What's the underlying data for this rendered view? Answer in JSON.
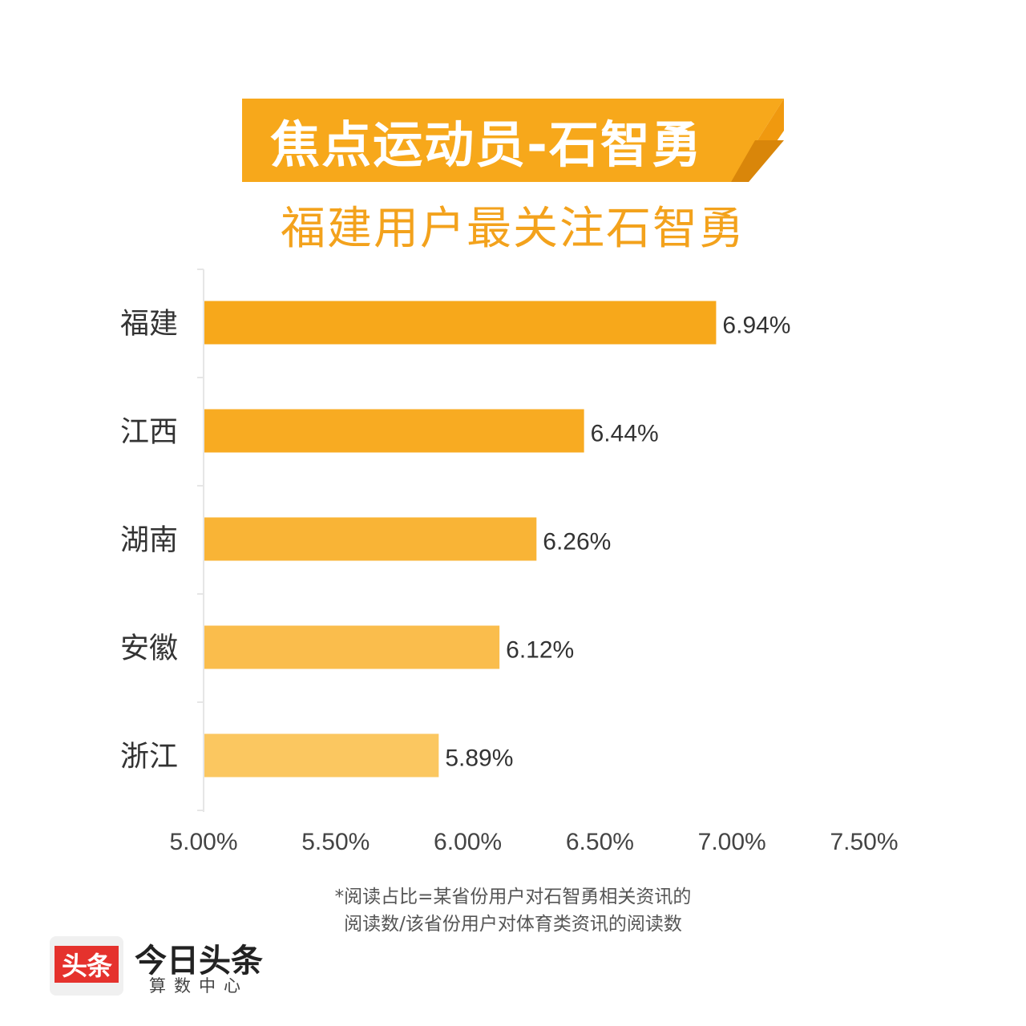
{
  "banner": {
    "title": "焦点运动员-石智勇",
    "color": "#f7a81b",
    "fold_color": "#e08f0c"
  },
  "subtitle": "福建用户最关注石智勇",
  "chart_data": {
    "type": "bar",
    "orientation": "horizontal",
    "title": "福建用户最关注石智勇",
    "categories": [
      "福建",
      "江西",
      "湖南",
      "安徽",
      "浙江"
    ],
    "values": [
      6.94,
      6.44,
      6.26,
      6.12,
      5.89
    ],
    "value_labels": [
      "6.94%",
      "6.44%",
      "6.26%",
      "6.12%",
      "5.89%"
    ],
    "bar_colors": [
      "#f7a81b",
      "#f8ab22",
      "#f9b436",
      "#fabd4c",
      "#fbc760"
    ],
    "xlim": [
      5.0,
      7.5
    ],
    "xticks": [
      5.0,
      5.5,
      6.0,
      6.5,
      7.0,
      7.5
    ],
    "xtick_labels": [
      "5.00%",
      "5.50%",
      "6.00%",
      "6.50%",
      "7.00%",
      "7.50%"
    ],
    "xlabel": "",
    "ylabel": "",
    "grid": false,
    "legend": "none"
  },
  "footnote": {
    "line1": "*阅读占比=某省份用户对石智勇相关资讯的",
    "line2": "阅读数/该省份用户对体育类资讯的阅读数"
  },
  "logo": {
    "badge": "头条",
    "name": "今日头条",
    "sub": "算数中心"
  }
}
